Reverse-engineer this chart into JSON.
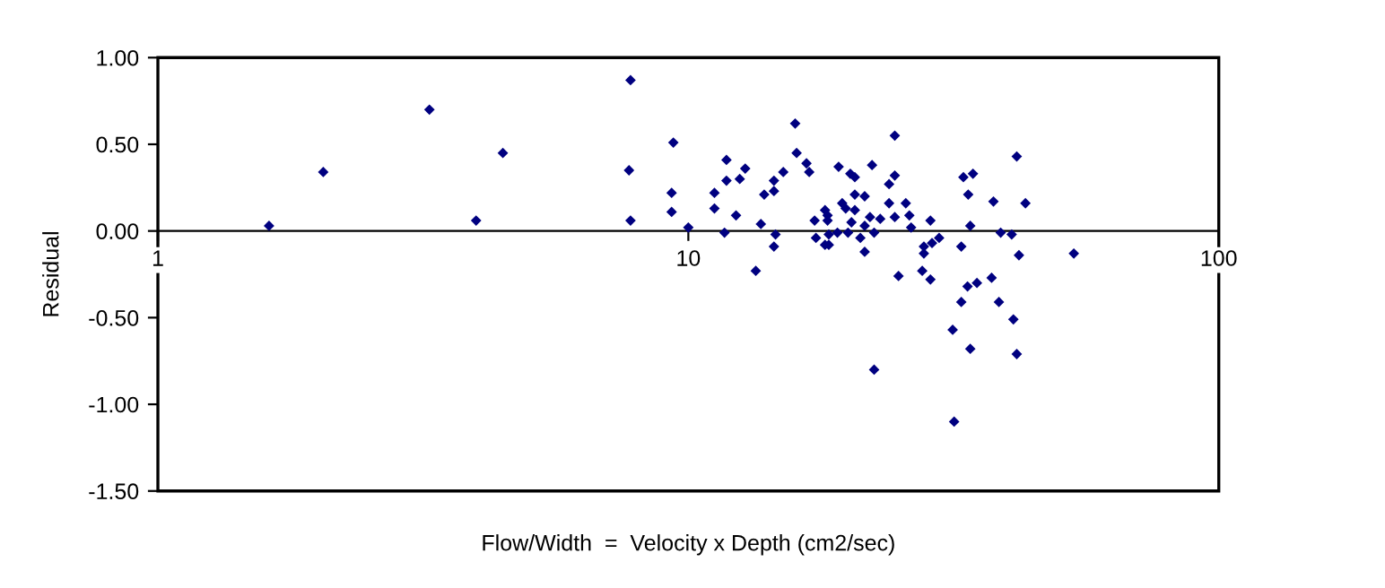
{
  "chart_data": {
    "type": "scatter",
    "xlabel": "Flow/Width  =  Velocity x Depth (cm2/sec)",
    "ylabel": "Residual",
    "log": "x",
    "marker": "diamond",
    "grid": false,
    "legend": false,
    "xlim": [
      1,
      100
    ],
    "xticks": [
      1,
      10,
      100
    ],
    "ylim": [
      -1.5,
      1.0
    ],
    "yticks": [
      {
        "value": -1.5,
        "label": "-1.50"
      },
      {
        "value": -1.0,
        "label": "-1.00"
      },
      {
        "value": -0.5,
        "label": "-0.50"
      },
      {
        "value": 0,
        "label": "0.00"
      },
      {
        "value": 0.5,
        "label": "0.50"
      },
      {
        "value": 1.0,
        "label": "1.00"
      }
    ],
    "series": [
      {
        "color": "#000080",
        "x": [
          1.62,
          2.05,
          3.25,
          3.98,
          4.47,
          7.78,
          7.73,
          7.78,
          9.37,
          9.3,
          9.3,
          10.0,
          11.2,
          11.2,
          11.8,
          11.8,
          11.7,
          12.3,
          12.5,
          12.8,
          13.4,
          13.7,
          13.9,
          14.5,
          14.5,
          14.6,
          14.5,
          15.1,
          15.9,
          16.0,
          16.7,
          16.9,
          17.3,
          17.4,
          18.1,
          18.1,
          18.3,
          18.4,
          18.3,
          18.4,
          19.1,
          19.2,
          19.5,
          19.8,
          20.0,
          20.2,
          20.3,
          20.6,
          20.6,
          20.6,
          21.1,
          21.5,
          21.5,
          21.5,
          22.0,
          22.2,
          22.4,
          23.0,
          23.9,
          23.9,
          24.5,
          24.5,
          24.5,
          24.9,
          25.7,
          26.1,
          26.3,
          27.8,
          27.8,
          28.6,
          28.8,
          29.7,
          27.6,
          28.6,
          32.7,
          33.0,
          33.7,
          34.4,
          34.0,
          37.6,
          38.8,
          40.7,
          41.6,
          42.0,
          43.2,
          53.3,
          37.3,
          35.0,
          22.4,
          32.7,
          33.6,
          31.5,
          34.0,
          31.7,
          38.5,
          41.0,
          41.6
        ],
        "values": [
          0.03,
          0.34,
          0.7,
          0.06,
          0.45,
          0.87,
          0.35,
          0.06,
          0.51,
          0.22,
          0.11,
          0.02,
          0.22,
          0.13,
          0.41,
          0.29,
          -0.01,
          0.09,
          0.3,
          0.36,
          -0.23,
          0.04,
          0.21,
          0.23,
          0.29,
          -0.02,
          -0.09,
          0.34,
          0.62,
          0.45,
          0.39,
          0.34,
          0.06,
          -0.04,
          0.12,
          -0.08,
          0.09,
          -0.08,
          0.06,
          -0.02,
          -0.01,
          0.37,
          0.16,
          0.13,
          -0.01,
          0.33,
          0.05,
          0.31,
          0.21,
          0.12,
          -0.04,
          0.2,
          0.03,
          -0.12,
          0.08,
          0.38,
          -0.01,
          0.07,
          0.27,
          0.16,
          0.55,
          0.32,
          0.08,
          -0.26,
          0.16,
          0.09,
          0.02,
          -0.09,
          -0.13,
          0.06,
          -0.07,
          -0.04,
          -0.23,
          -0.28,
          -0.09,
          0.31,
          0.21,
          0.33,
          0.03,
          0.17,
          -0.01,
          -0.02,
          0.43,
          -0.14,
          0.16,
          -0.13,
          -0.27,
          -0.3,
          -0.8,
          -0.41,
          -0.32,
          -0.57,
          -0.68,
          -1.1,
          -0.41,
          -0.51,
          -0.71
        ]
      }
    ]
  }
}
